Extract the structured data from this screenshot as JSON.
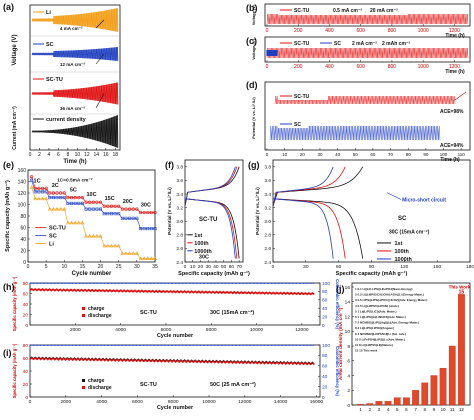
{
  "chart_data": [
    {
      "panel": "a",
      "type": "line",
      "ylabel": "Voltage (V)",
      "xlabel": "Time (h)",
      "ylabel_bottom": "Current (mA cm⁻²)",
      "xticks": [
        0,
        2,
        4,
        6,
        8,
        10,
        12,
        14,
        16,
        18
      ],
      "xlim": [
        0,
        19
      ],
      "traces": [
        {
          "name": "Li",
          "color": "#f39c12",
          "annotation": "4 mA cm⁻²",
          "oscillation_growth": [
            0.3,
            1.0
          ]
        },
        {
          "name": "SC",
          "color": "#1f3fbf",
          "annotation": "12 mA cm⁻²",
          "oscillation_growth": [
            0.2,
            0.5
          ]
        },
        {
          "name": "SC-TU",
          "color": "#e01010",
          "annotation": "36 mA cm⁻²",
          "oscillation_growth": [
            0.15,
            0.6
          ]
        },
        {
          "name": "current density",
          "color": "#111111",
          "annotation": "",
          "oscillation_growth": [
            0.05,
            1.0
          ]
        }
      ]
    },
    {
      "panel": "b",
      "type": "line",
      "ylabel": "Voltage (V)",
      "xlabel": "Time (h)",
      "xticks": [
        0,
        200,
        400,
        600,
        800,
        1000,
        1200
      ],
      "xlim": [
        0,
        1300
      ],
      "series": [
        {
          "name": "SC-TU",
          "color": "#e01010",
          "condition": "0.5 mA cm⁻²",
          "capacity": "20 mA cm⁻²"
        }
      ]
    },
    {
      "panel": "c",
      "type": "line",
      "ylabel": "Voltage (V)",
      "xlabel": "Time (h)",
      "xticks": [
        0,
        200,
        400,
        600,
        800,
        1000,
        1200
      ],
      "xlim": [
        0,
        1300
      ],
      "series": [
        {
          "name": "SC-TU",
          "color": "#e01010"
        },
        {
          "name": "SC",
          "color": "#1f3fbf"
        }
      ],
      "condition": "2 mA cm⁻²",
      "capacity": "2 mAh cm⁻²"
    },
    {
      "panel": "d",
      "type": "line",
      "ylabel": "Potential (V vs. Li⁺/Li)",
      "xlabel": "Time (h)",
      "xticks": [
        0,
        10,
        20,
        30,
        40,
        50,
        60,
        70,
        80,
        90,
        100,
        110
      ],
      "xlim": [
        0,
        115
      ],
      "series": [
        {
          "name": "SC-TU",
          "color": "#e01010",
          "ace": "ACE=98%"
        },
        {
          "name": "SC",
          "color": "#1f3fbf",
          "ace": "ACE=94%"
        }
      ]
    },
    {
      "panel": "e",
      "type": "scatter",
      "xlabel": "Cycle number",
      "ylabel": "Specific capacity (mAh g⁻¹)",
      "xlim": [
        0,
        35
      ],
      "ylim": [
        0,
        160
      ],
      "xticks": [
        0,
        5,
        10,
        15,
        20,
        25,
        30,
        35
      ],
      "yticks": [
        0,
        20,
        40,
        60,
        80,
        100,
        120,
        140,
        160
      ],
      "rate_labels": [
        "1C",
        "2C",
        "5C",
        "10C",
        "15C",
        "20C",
        "30C",
        "1C"
      ],
      "rate_note": "1C=0.5mA cm⁻²",
      "series": [
        {
          "name": "SC-TU",
          "color": "#e01010",
          "marker": "circle",
          "levels": [
            128,
            120,
            112,
            104,
            97,
            92,
            86,
            122
          ]
        },
        {
          "name": "SC",
          "color": "#1f3fbf",
          "marker": "square",
          "levels": [
            122,
            112,
            102,
            92,
            84,
            76,
            58,
            118
          ]
        },
        {
          "name": "Li",
          "color": "#f39c12",
          "marker": "triangle",
          "levels": [
            110,
            92,
            68,
            45,
            28,
            15,
            6,
            102
          ]
        }
      ]
    },
    {
      "panel": "f",
      "type": "line",
      "xlabel": "Specific capacity (mAh g⁻¹)",
      "ylabel": "Potential (V vs. Li⁺/Li)",
      "xlim": [
        0,
        75
      ],
      "ylim": [
        2.4,
        3.9
      ],
      "xticks": [
        0,
        10,
        20,
        30,
        40,
        50,
        60,
        70
      ],
      "yticks": [
        2.4,
        2.6,
        2.8,
        3.0,
        3.2,
        3.4,
        3.6,
        3.8
      ],
      "label": "SC-TU",
      "rate": "30C (15mA cm⁻²)",
      "series": [
        {
          "name": "1st",
          "color": "#111111",
          "capacity": 70
        },
        {
          "name": "100th",
          "color": "#e01010",
          "capacity": 67
        },
        {
          "name": "1000th",
          "color": "#1f3fbf",
          "capacity": 65
        }
      ]
    },
    {
      "panel": "g",
      "type": "line",
      "xlabel": "Specific capacity (mAh g⁻¹)",
      "ylabel": "Potential (V vs. Li⁺/Li)",
      "xlim": [
        0,
        180
      ],
      "ylim": [
        2.4,
        3.9
      ],
      "xticks": [
        0,
        30,
        60,
        90,
        120,
        150,
        180
      ],
      "yticks": [
        2.4,
        2.6,
        2.8,
        3.0,
        3.2,
        3.4,
        3.6,
        3.8
      ],
      "label": "SC",
      "rate": "30C (15mA cm⁻²)",
      "annotation": "Micro-short circuit",
      "series": [
        {
          "name": "1st",
          "color": "#111111",
          "capacity": 82
        },
        {
          "name": "100th",
          "color": "#e01010",
          "capacity": 66
        },
        {
          "name": "1000th",
          "color": "#1f3fbf",
          "capacity": 55
        }
      ]
    },
    {
      "panel": "h",
      "type": "scatter",
      "xlabel": "Cycle number",
      "ylabel": "Specific capacity (mAh g⁻¹)",
      "ylabel_right": "Coulombic efficiency (%)",
      "xlim": [
        0,
        12800
      ],
      "ylim": [
        0,
        80
      ],
      "y2lim": [
        0,
        100
      ],
      "xticks": [
        2000,
        4000,
        6000,
        8000,
        10000,
        12000
      ],
      "yticks": [
        0,
        20,
        40,
        60,
        80
      ],
      "y2ticks": [
        0,
        20,
        40,
        60,
        80,
        100
      ],
      "label": "SC-TU",
      "rate": "30C (15mA cm⁻²)",
      "series": [
        {
          "name": "charge",
          "color": "#e01010",
          "start": 68,
          "end": 60
        },
        {
          "name": "discharge",
          "color": "#e01010",
          "start": 67,
          "end": 59
        },
        {
          "name": "Coulombic efficiency",
          "color": "#1f3fbf",
          "start": 99.5,
          "end": 99.5
        }
      ]
    },
    {
      "panel": "i",
      "type": "scatter",
      "xlabel": "Cycle number",
      "ylabel": "Specific capacity (mAh g⁻¹)",
      "ylabel_right": "Coulombic efficiency (%)",
      "xlim": [
        0,
        16200
      ],
      "ylim": [
        0,
        80
      ],
      "y2lim": [
        0,
        100
      ],
      "xticks": [
        0,
        2000,
        4000,
        6000,
        8000,
        10000,
        12000,
        14000,
        16000
      ],
      "yticks": [
        0,
        20,
        40,
        60,
        80
      ],
      "y2ticks": [
        0,
        20,
        40,
        60,
        80,
        100
      ],
      "label": "SC-TU",
      "rate": "50C (25 mA cm⁻²)",
      "series": [
        {
          "name": "charge",
          "color": "#111111",
          "start": 60,
          "end": 52
        },
        {
          "name": "discharge",
          "color": "#e01010",
          "start": 59,
          "end": 51
        },
        {
          "name": "Coulombic efficiency",
          "color": "#1f3fbf",
          "start": 99.5,
          "end": 99.5
        }
      ]
    },
    {
      "panel": "j",
      "type": "bar",
      "ylabel": "Areal current density (mA cm⁻²)",
      "categories": [
        "1",
        "2",
        "3",
        "4",
        "5",
        "6",
        "7",
        "8",
        "9",
        "10",
        "11",
        "12"
      ],
      "values": [
        0.1,
        0.2,
        0.5,
        0.5,
        1,
        1,
        2,
        3,
        4,
        5,
        8,
        15
      ],
      "ylim": [
        0,
        16
      ],
      "yticks": [
        0,
        2,
        4,
        6,
        8,
        10,
        12,
        14,
        16
      ],
      "top_label": "This Work",
      "top_value": "15",
      "legend": [
        "1  0.1 Li||LiF-LPS||LiFePO4(Nano Energy)",
        "2  0.2 Li||Li6PS5Cl/LiOH/LAGA||Li (Energy Mater.)",
        "3  0.5 LiPS||LiPS(LiPOC@ZrO2)(Adv. Energy Mater.)",
        "4  0.5 Li||Li6PS5(LiPON) (Joule)",
        "5  1 Li||LiPS(LiCl)(Adv. Mater.)",
        "6  1 Li||LiPS||Li(LiNbO3)(Adv. Mater.)",
        "7  2 NCM811||LiPS(Ag)||Li(Adv. Energy Mater.)",
        "8  3 Li||LiPS(LiPO3)(Angew.)",
        "9  4 NCM622||Li6PS5Cl||Li (Sci. Adv.)",
        "10  5 LiFePO4||LiPS||Li (Adv. Mater.)",
        "11  8 Li||Li6PS5(LiI)(Nature)",
        "12  15 This work"
      ]
    }
  ]
}
